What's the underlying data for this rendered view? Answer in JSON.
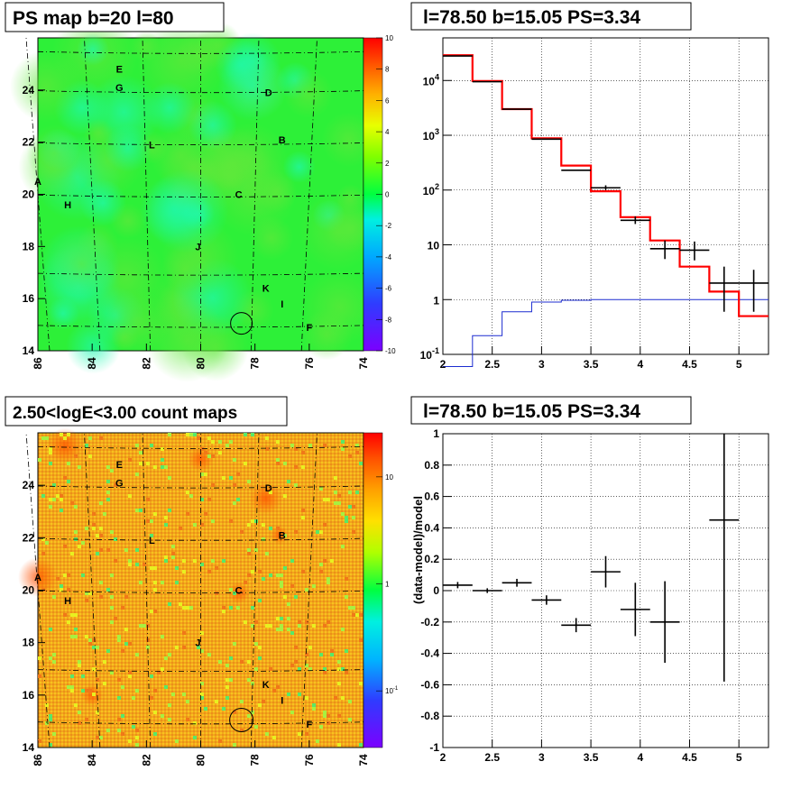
{
  "chart_data": [
    {
      "type": "heatmap",
      "title": "PS map b=20 l=80",
      "xlabel": "",
      "ylabel": "",
      "xlim": [
        86,
        74
      ],
      "ylim": [
        14,
        26
      ],
      "x_ticks": [
        "86",
        "84",
        "82",
        "80",
        "78",
        "76",
        "74"
      ],
      "y_ticks": [
        "14",
        "16",
        "18",
        "20",
        "22",
        "24"
      ],
      "colorbar": {
        "range": [
          -10,
          10
        ],
        "ticks": [
          "10",
          "8",
          "6",
          "4",
          "2",
          "0",
          "-2",
          "-4",
          "-6",
          "-8",
          "-10"
        ]
      },
      "sources": [
        {
          "label": "E",
          "l": 83.0,
          "b": 24.8
        },
        {
          "label": "G",
          "l": 83.0,
          "b": 24.1
        },
        {
          "label": "D",
          "l": 77.5,
          "b": 23.9
        },
        {
          "label": "B",
          "l": 77.0,
          "b": 22.1
        },
        {
          "label": "L",
          "l": 81.8,
          "b": 21.9
        },
        {
          "label": "A",
          "l": 86.0,
          "b": 20.5
        },
        {
          "label": "C",
          "l": 78.6,
          "b": 20.0
        },
        {
          "label": "H",
          "l": 84.9,
          "b": 19.6
        },
        {
          "label": "J",
          "l": 80.1,
          "b": 18.0
        },
        {
          "label": "K",
          "l": 77.6,
          "b": 16.4
        },
        {
          "label": "I",
          "l": 77.0,
          "b": 15.8
        },
        {
          "label": "F",
          "l": 76.0,
          "b": 14.9
        }
      ],
      "circle": {
        "l": 78.5,
        "b": 15.05
      }
    },
    {
      "type": "line",
      "title": "l=78.50 b=15.05 PS=3.34",
      "xlabel": "",
      "ylabel": "",
      "xlim": [
        2,
        5.3
      ],
      "ylim": [
        0.1,
        60000
      ],
      "yscale": "log",
      "x_ticks": [
        "2",
        "2.5",
        "3",
        "3.5",
        "4",
        "4.5",
        "5"
      ],
      "y_ticks": [
        "10^-1",
        "1",
        "10",
        "10^2",
        "10^3",
        "10^4"
      ],
      "grid": true,
      "data": {
        "x": [
          2.15,
          2.45,
          2.75,
          3.05,
          3.35,
          3.65,
          3.95,
          4.25,
          4.55,
          4.85,
          5.15
        ],
        "y": [
          28000,
          9500,
          3000,
          850,
          230,
          110,
          28,
          8.5,
          8,
          2,
          2
        ],
        "err": [
          [
            0,
            0
          ],
          [
            0,
            0
          ],
          [
            0,
            0
          ],
          [
            0,
            0
          ],
          [
            0,
            0
          ],
          [
            10,
            12
          ],
          [
            4,
            5
          ],
          [
            3,
            3.5
          ],
          [
            2.8,
            3.5
          ],
          [
            1.4,
            2
          ],
          [
            1.4,
            1.5
          ]
        ]
      },
      "model_edges": [
        2,
        2.3,
        2.6,
        2.9,
        3.2,
        3.5,
        3.8,
        4.1,
        4.4,
        4.7,
        5.0,
        5.3
      ],
      "model_values": [
        29000,
        9800,
        3000,
        880,
        280,
        95,
        32,
        12,
        4,
        1.4,
        0.5
      ],
      "bg_edges": [
        2,
        2.3,
        2.6,
        2.9,
        3.2,
        3.5,
        3.8,
        4.1,
        4.4,
        4.7,
        5.0,
        5.3
      ],
      "bg_values": [
        0.06,
        0.22,
        0.6,
        0.9,
        0.97,
        1,
        1,
        1,
        1,
        1,
        1
      ]
    },
    {
      "type": "heatmap",
      "title": "2.50<logE<3.00 count maps",
      "xlabel": "",
      "ylabel": "",
      "xlim": [
        86,
        74
      ],
      "ylim": [
        14,
        26
      ],
      "x_ticks": [
        "86",
        "84",
        "82",
        "80",
        "78",
        "76",
        "74"
      ],
      "y_ticks": [
        "14",
        "16",
        "18",
        "20",
        "22",
        "24"
      ],
      "colorbar": {
        "scale": "log",
        "ticks": [
          "10",
          "1",
          "10^-1"
        ]
      },
      "circle": {
        "l": 78.5,
        "b": 15.05
      }
    },
    {
      "type": "scatter",
      "title": "l=78.50 b=15.05 PS=3.34",
      "xlabel": "",
      "ylabel": "(data-model)/model",
      "xlim": [
        2,
        5.3
      ],
      "ylim": [
        -1,
        1
      ],
      "x_ticks": [
        "2",
        "2.5",
        "3",
        "3.5",
        "4",
        "4.5",
        "5"
      ],
      "y_ticks": [
        "-1",
        "-0.8",
        "-0.6",
        "-0.4",
        "-0.2",
        "0",
        "0.2",
        "0.4",
        "0.6",
        "0.8",
        "1"
      ],
      "grid": true,
      "data": {
        "x": [
          2.15,
          2.45,
          2.75,
          3.05,
          3.35,
          3.65,
          3.95,
          4.25,
          4.85
        ],
        "y": [
          0.035,
          0.0,
          0.05,
          -0.06,
          -0.22,
          0.12,
          -0.12,
          -0.2,
          0.45
        ],
        "err": [
          0.02,
          0.015,
          0.025,
          0.03,
          0.045,
          0.1,
          0.17,
          0.26,
          1.03
        ]
      }
    }
  ]
}
